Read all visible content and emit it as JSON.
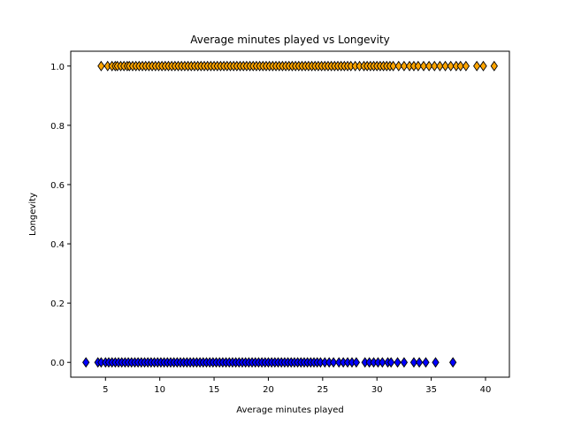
{
  "chart_data": {
    "type": "scatter",
    "title": "Average minutes played vs Longevity",
    "xlabel": "Average minutes played",
    "ylabel": "Longevity",
    "xlim": [
      1.8,
      42.2
    ],
    "ylim": [
      -0.05,
      1.05
    ],
    "xticks": [
      5,
      10,
      15,
      20,
      25,
      30,
      35,
      40
    ],
    "yticks": [
      0.0,
      0.2,
      0.4,
      0.6,
      0.8,
      1.0
    ],
    "ytick_labels": [
      "0.0",
      "0.2",
      "0.4",
      "0.6",
      "0.8",
      "1.0"
    ],
    "marker": "diamond",
    "grid": false,
    "series": [
      {
        "color": "#ffa500",
        "y": 1.0,
        "x": [
          4.6,
          5.2,
          5.6,
          5.9,
          6.1,
          6.4,
          6.7,
          7.0,
          7.2,
          7.5,
          7.8,
          8.1,
          8.4,
          8.7,
          9.0,
          9.3,
          9.6,
          9.9,
          10.2,
          10.5,
          10.8,
          11.1,
          11.4,
          11.7,
          12.0,
          12.3,
          12.6,
          12.9,
          13.2,
          13.5,
          13.8,
          14.1,
          14.4,
          14.7,
          15.0,
          15.3,
          15.6,
          15.9,
          16.2,
          16.5,
          16.8,
          17.1,
          17.4,
          17.7,
          18.0,
          18.3,
          18.6,
          18.9,
          19.2,
          19.5,
          19.8,
          20.1,
          20.4,
          20.7,
          21.0,
          21.3,
          21.6,
          21.9,
          22.2,
          22.5,
          22.8,
          23.1,
          23.4,
          23.7,
          24.0,
          24.3,
          24.6,
          24.9,
          25.2,
          25.5,
          25.8,
          26.1,
          26.4,
          26.7,
          27.0,
          27.3,
          27.6,
          28.0,
          28.4,
          28.8,
          29.1,
          29.4,
          29.7,
          30.0,
          30.3,
          30.6,
          30.9,
          31.2,
          31.5,
          32.0,
          32.5,
          33.0,
          33.4,
          33.8,
          34.3,
          34.8,
          35.3,
          35.8,
          36.3,
          36.8,
          37.3,
          37.7,
          38.2,
          39.2,
          39.8,
          40.8
        ]
      },
      {
        "color": "#0000ff",
        "y": 0.0,
        "x": [
          3.2,
          4.3,
          4.6,
          5.0,
          5.3,
          5.6,
          5.9,
          6.2,
          6.5,
          6.8,
          7.1,
          7.4,
          7.7,
          8.0,
          8.3,
          8.6,
          8.9,
          9.2,
          9.5,
          9.8,
          10.1,
          10.4,
          10.7,
          11.0,
          11.3,
          11.6,
          11.9,
          12.2,
          12.5,
          12.8,
          13.1,
          13.4,
          13.7,
          14.0,
          14.3,
          14.6,
          14.9,
          15.2,
          15.5,
          15.8,
          16.1,
          16.4,
          16.7,
          17.0,
          17.3,
          17.6,
          17.9,
          18.2,
          18.5,
          18.8,
          19.1,
          19.4,
          19.7,
          20.0,
          20.3,
          20.6,
          20.9,
          21.2,
          21.5,
          21.8,
          22.1,
          22.4,
          22.7,
          23.0,
          23.3,
          23.6,
          23.9,
          24.2,
          24.5,
          24.8,
          25.2,
          25.6,
          26.0,
          26.5,
          26.9,
          27.3,
          27.7,
          28.1,
          28.9,
          29.3,
          29.7,
          30.1,
          30.5,
          31.0,
          31.3,
          31.9,
          32.5,
          33.4,
          33.9,
          34.5,
          35.4,
          37.0
        ]
      }
    ]
  }
}
